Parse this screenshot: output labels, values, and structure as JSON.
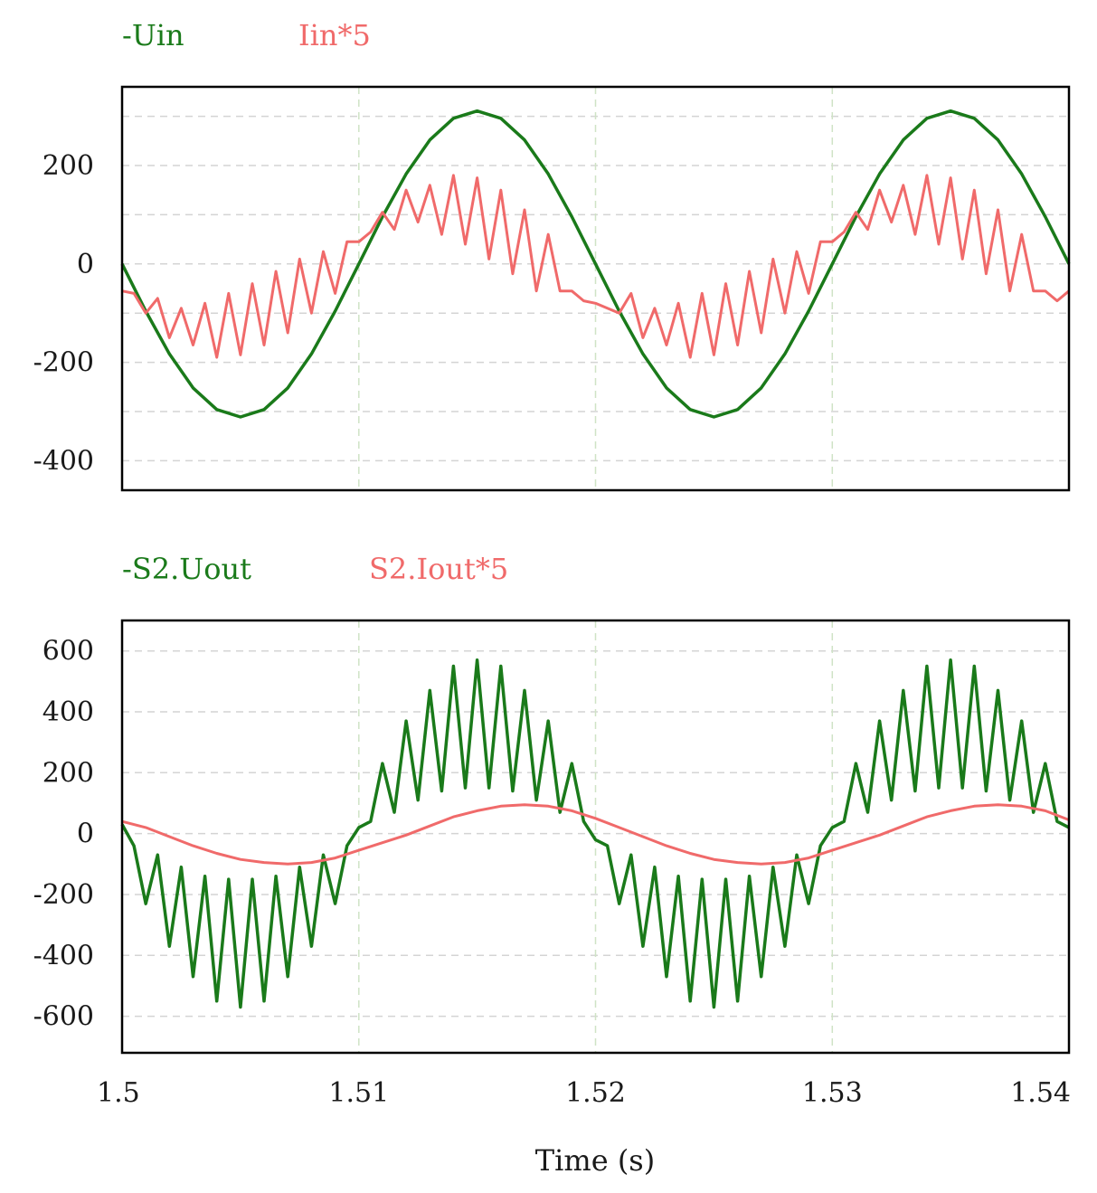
{
  "chart_data": [
    {
      "type": "line",
      "legend": [
        {
          "label": "-Uin",
          "color": "#1a7a1a"
        },
        {
          "label": "Iin*5",
          "color": "#f06a6a"
        }
      ],
      "xlim": [
        1.5,
        1.54
      ],
      "ylim": [
        -460,
        360
      ],
      "yticks": [
        200,
        0,
        -200,
        -400
      ],
      "ytick_labels": [
        "200",
        "0",
        "-200",
        "-400"
      ],
      "xgrid": [
        1.51,
        1.52,
        1.53
      ],
      "ygrid": [
        300,
        200,
        100,
        0,
        -100,
        -200,
        -300,
        -400
      ],
      "series": [
        {
          "color": "#1a7a1a",
          "x": [
            1.5,
            1.501,
            1.502,
            1.503,
            1.504,
            1.505,
            1.506,
            1.507,
            1.508,
            1.509,
            1.51,
            1.511,
            1.512,
            1.513,
            1.514,
            1.515,
            1.516,
            1.517,
            1.518,
            1.519,
            1.52,
            1.521,
            1.522,
            1.523,
            1.524,
            1.525,
            1.526,
            1.527,
            1.528,
            1.529,
            1.53,
            1.531,
            1.532,
            1.533,
            1.534,
            1.535,
            1.536,
            1.537,
            1.538,
            1.539,
            1.54
          ],
          "values": [
            0,
            -96,
            -183,
            -252,
            -296,
            -311,
            -296,
            -252,
            -183,
            -96,
            0,
            96,
            183,
            252,
            296,
            311,
            296,
            252,
            183,
            96,
            0,
            -96,
            -183,
            -252,
            -296,
            -311,
            -296,
            -252,
            -183,
            -96,
            0,
            96,
            183,
            252,
            296,
            311,
            296,
            252,
            183,
            96,
            0
          ]
        },
        {
          "color": "#f06a6a",
          "x": [
            1.5,
            1.5005,
            1.501,
            1.5015,
            1.502,
            1.5025,
            1.503,
            1.5035,
            1.504,
            1.5045,
            1.505,
            1.5055,
            1.506,
            1.5065,
            1.507,
            1.5075,
            1.508,
            1.5085,
            1.509,
            1.5095,
            1.51,
            1.5105,
            1.511,
            1.5115,
            1.512,
            1.5125,
            1.513,
            1.5135,
            1.514,
            1.5145,
            1.515,
            1.5155,
            1.516,
            1.5165,
            1.517,
            1.5175,
            1.518,
            1.5185,
            1.519,
            1.5195,
            1.52,
            1.5205,
            1.521,
            1.5215,
            1.522,
            1.5225,
            1.523,
            1.5235,
            1.524,
            1.5245,
            1.525,
            1.5255,
            1.526,
            1.5265,
            1.527,
            1.5275,
            1.528,
            1.5285,
            1.529,
            1.5295,
            1.53,
            1.5305,
            1.531,
            1.5315,
            1.532,
            1.5325,
            1.533,
            1.5335,
            1.534,
            1.5345,
            1.535,
            1.5355,
            1.536,
            1.5365,
            1.537,
            1.5375,
            1.538,
            1.5385,
            1.539,
            1.5395,
            1.54
          ],
          "values": [
            -55,
            -60,
            -100,
            -70,
            -150,
            -90,
            -165,
            -80,
            -190,
            -60,
            -185,
            -40,
            -165,
            -15,
            -140,
            10,
            -100,
            25,
            -60,
            45,
            45,
            65,
            105,
            70,
            150,
            85,
            160,
            60,
            180,
            40,
            175,
            10,
            150,
            -20,
            110,
            -55,
            60,
            -55,
            -55,
            -75,
            -80,
            -90,
            -100,
            -60,
            -150,
            -90,
            -165,
            -80,
            -190,
            -60,
            -185,
            -40,
            -165,
            -15,
            -140,
            10,
            -100,
            25,
            -60,
            45,
            45,
            65,
            105,
            70,
            150,
            85,
            160,
            60,
            180,
            40,
            175,
            10,
            150,
            -20,
            110,
            -55,
            60,
            -55,
            -55,
            -75,
            -55
          ]
        }
      ]
    },
    {
      "type": "line",
      "legend": [
        {
          "label": "-S2.Uout",
          "color": "#1a7a1a"
        },
        {
          "label": "S2.Iout*5",
          "color": "#f06a6a"
        }
      ],
      "xlim": [
        1.5,
        1.54
      ],
      "ylim": [
        -720,
        700
      ],
      "yticks": [
        600,
        400,
        200,
        0,
        -200,
        -400,
        -600
      ],
      "ytick_labels": [
        "600",
        "400",
        "200",
        "0",
        "-200",
        "-400",
        "-600"
      ],
      "xticks": [
        1.5,
        1.51,
        1.52,
        1.53,
        1.54
      ],
      "xtick_labels": [
        "1.5",
        "1.51",
        "1.52",
        "1.53",
        "1.54"
      ],
      "xlabel": "Time (s)",
      "xgrid": [
        1.51,
        1.52,
        1.53
      ],
      "ygrid": [
        600,
        400,
        200,
        0,
        -200,
        -400,
        -600
      ],
      "series": [
        {
          "color": "#1a7a1a",
          "x": [
            1.5,
            1.5005,
            1.501,
            1.5015,
            1.502,
            1.5025,
            1.503,
            1.5035,
            1.504,
            1.5045,
            1.505,
            1.5055,
            1.506,
            1.5065,
            1.507,
            1.5075,
            1.508,
            1.5085,
            1.509,
            1.5095,
            1.51,
            1.5105,
            1.511,
            1.5115,
            1.512,
            1.5125,
            1.513,
            1.5135,
            1.514,
            1.5145,
            1.515,
            1.5155,
            1.516,
            1.5165,
            1.517,
            1.5175,
            1.518,
            1.5185,
            1.519,
            1.5195,
            1.52,
            1.5205,
            1.521,
            1.5215,
            1.522,
            1.5225,
            1.523,
            1.5235,
            1.524,
            1.5245,
            1.525,
            1.5255,
            1.526,
            1.5265,
            1.527,
            1.5275,
            1.528,
            1.5285,
            1.529,
            1.5295,
            1.53,
            1.5305,
            1.531,
            1.5315,
            1.532,
            1.5325,
            1.533,
            1.5335,
            1.534,
            1.5345,
            1.535,
            1.5355,
            1.536,
            1.5365,
            1.537,
            1.5375,
            1.538,
            1.5385,
            1.539,
            1.5395,
            1.54
          ],
          "values": [
            30,
            -40,
            -230,
            -70,
            -370,
            -110,
            -470,
            -140,
            -550,
            -150,
            -570,
            -150,
            -550,
            -140,
            -470,
            -110,
            -370,
            -70,
            -230,
            -40,
            20,
            40,
            230,
            70,
            370,
            110,
            470,
            140,
            550,
            150,
            570,
            150,
            550,
            140,
            470,
            110,
            370,
            70,
            230,
            40,
            -20,
            -40,
            -230,
            -70,
            -370,
            -110,
            -470,
            -140,
            -550,
            -150,
            -570,
            -150,
            -550,
            -140,
            -470,
            -110,
            -370,
            -70,
            -230,
            -40,
            20,
            40,
            230,
            70,
            370,
            110,
            470,
            140,
            550,
            150,
            570,
            150,
            550,
            140,
            470,
            110,
            370,
            70,
            230,
            40,
            20
          ]
        },
        {
          "color": "#f06a6a",
          "x": [
            1.5,
            1.501,
            1.502,
            1.503,
            1.504,
            1.505,
            1.506,
            1.507,
            1.508,
            1.509,
            1.51,
            1.511,
            1.512,
            1.513,
            1.514,
            1.515,
            1.516,
            1.517,
            1.518,
            1.519,
            1.52,
            1.521,
            1.522,
            1.523,
            1.524,
            1.525,
            1.526,
            1.527,
            1.528,
            1.529,
            1.53,
            1.531,
            1.532,
            1.533,
            1.534,
            1.535,
            1.536,
            1.537,
            1.538,
            1.539,
            1.54
          ],
          "values": [
            40,
            20,
            -10,
            -40,
            -65,
            -85,
            -95,
            -100,
            -95,
            -80,
            -55,
            -30,
            -5,
            25,
            55,
            75,
            90,
            95,
            90,
            75,
            50,
            20,
            -10,
            -40,
            -65,
            -85,
            -95,
            -100,
            -95,
            -80,
            -55,
            -30,
            -5,
            25,
            55,
            75,
            90,
            95,
            90,
            75,
            45
          ]
        }
      ]
    }
  ]
}
